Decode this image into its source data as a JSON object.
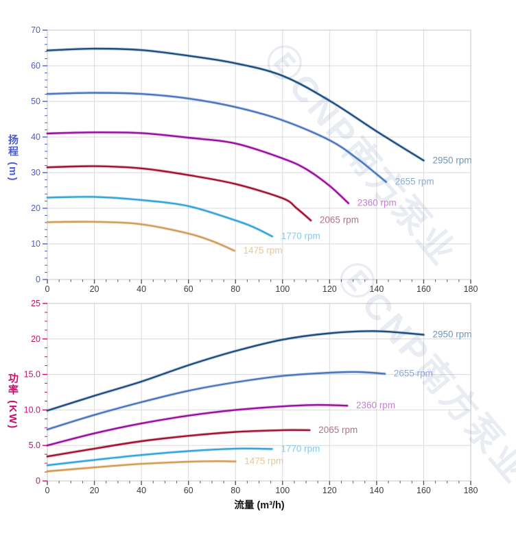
{
  "page": {
    "background": "#ffffff"
  },
  "watermark": {
    "text": "ⒺCNP南方泵业",
    "color": "rgba(92,108,160,0.13)"
  },
  "chart_data": [
    {
      "id": "head-vs-flow",
      "type": "line",
      "title": "",
      "xlabel": "",
      "ylabel": "扬程 (m)",
      "xlim": [
        0,
        180
      ],
      "ylim": [
        0,
        70
      ],
      "grid": true,
      "legend_position": "curve-end-labels",
      "x_ticks": {
        "values": [
          0,
          20,
          40,
          60,
          80,
          100,
          120,
          140,
          160,
          180
        ],
        "labels": [
          "0",
          "20",
          "40",
          "60",
          "80",
          "100",
          "120",
          "140",
          "160",
          "180"
        ],
        "minor_step": 5,
        "label_color": "#3a3a3a"
      },
      "y_ticks": {
        "values": [
          0,
          10,
          20,
          30,
          40,
          50,
          60,
          70
        ],
        "labels": [
          "0",
          "10",
          "20",
          "30",
          "40",
          "50",
          "60",
          "70"
        ],
        "minor_step": 2,
        "color": "#4a5bd6"
      },
      "series": [
        {
          "name": "2950 rpm",
          "color": "#1c4e80",
          "label_color": "#6f94bc",
          "points": [
            [
              0,
              64.3
            ],
            [
              20,
              64.8
            ],
            [
              40,
              64.4
            ],
            [
              60,
              62.8
            ],
            [
              80,
              60.7
            ],
            [
              100,
              57.2
            ],
            [
              120,
              50.2
            ],
            [
              140,
              41.6
            ],
            [
              160,
              33.4
            ]
          ]
        },
        {
          "name": "2655 rpm",
          "color": "#4a76c0",
          "label_color": "#8ea9d8",
          "points": [
            [
              0,
              52.1
            ],
            [
              20,
              52.4
            ],
            [
              40,
              52.1
            ],
            [
              60,
              50.8
            ],
            [
              80,
              48.4
            ],
            [
              100,
              44.7
            ],
            [
              120,
              39.1
            ],
            [
              132,
              33.8
            ],
            [
              144,
              27.4
            ]
          ]
        },
        {
          "name": "2360 rpm",
          "color": "#990f9e",
          "label_color": "#c17fd0",
          "points": [
            [
              0,
              41.0
            ],
            [
              20,
              41.3
            ],
            [
              40,
              41.1
            ],
            [
              60,
              39.8
            ],
            [
              80,
              38.2
            ],
            [
              100,
              34.0
            ],
            [
              110,
              31.0
            ],
            [
              120,
              26.3
            ],
            [
              128,
              21.4
            ]
          ]
        },
        {
          "name": "2065 rpm",
          "color": "#a01331",
          "label_color": "#b3718b",
          "points": [
            [
              0,
              31.5
            ],
            [
              20,
              31.8
            ],
            [
              40,
              31.2
            ],
            [
              60,
              29.3
            ],
            [
              80,
              26.8
            ],
            [
              100,
              22.8
            ],
            [
              106,
              20.0
            ],
            [
              112,
              16.6
            ]
          ]
        },
        {
          "name": "1770 rpm",
          "color": "#35a3dd",
          "label_color": "#85c9ef",
          "points": [
            [
              0,
              23.0
            ],
            [
              20,
              23.2
            ],
            [
              40,
              22.3
            ],
            [
              60,
              20.6
            ],
            [
              80,
              16.6
            ],
            [
              88,
              14.6
            ],
            [
              95.6,
              12.1
            ]
          ]
        },
        {
          "name": "1475 rpm",
          "color": "#d19d58",
          "label_color": "#e5c69c",
          "points": [
            [
              0,
              16.1
            ],
            [
              20,
              16.2
            ],
            [
              40,
              15.5
            ],
            [
              60,
              12.9
            ],
            [
              70,
              10.8
            ],
            [
              79.5,
              8.1
            ]
          ]
        }
      ]
    },
    {
      "id": "power-vs-flow",
      "type": "line",
      "title": "",
      "xlabel": "流量 (m³/h)",
      "ylabel": "功率 (KW)",
      "xlim": [
        0,
        180
      ],
      "ylim": [
        0,
        25
      ],
      "grid": true,
      "legend_position": "curve-end-labels",
      "x_ticks": {
        "values": [
          0,
          20,
          40,
          60,
          80,
          100,
          120,
          140,
          160,
          180
        ],
        "labels": [
          "0",
          "20",
          "40",
          "60",
          "80",
          "100",
          "120",
          "140",
          "160",
          "180"
        ],
        "minor_step": 5,
        "label_color": "#3a3a3a"
      },
      "y_ticks": {
        "values": [
          0,
          5,
          10,
          15,
          20,
          25
        ],
        "labels": [
          "0",
          "5.0",
          "10.0",
          "15.0",
          "20",
          "25"
        ],
        "minor_step": 1.25,
        "color": "#cc0a6e"
      },
      "series": [
        {
          "name": "2950 rpm",
          "color": "#1c4e80",
          "label_color": "#6f94bc",
          "points": [
            [
              0,
              9.9
            ],
            [
              20,
              12.0
            ],
            [
              40,
              14.0
            ],
            [
              60,
              16.3
            ],
            [
              80,
              18.3
            ],
            [
              100,
              19.9
            ],
            [
              120,
              20.8
            ],
            [
              140,
              21.1
            ],
            [
              160,
              20.6
            ]
          ]
        },
        {
          "name": "2655 rpm",
          "color": "#4a76c0",
          "label_color": "#8ea9d8",
          "points": [
            [
              0,
              7.25
            ],
            [
              20,
              9.3
            ],
            [
              40,
              11.1
            ],
            [
              60,
              12.7
            ],
            [
              80,
              13.9
            ],
            [
              100,
              14.8
            ],
            [
              120,
              15.25
            ],
            [
              132,
              15.35
            ],
            [
              143.5,
              15.1
            ]
          ]
        },
        {
          "name": "2360 rpm",
          "color": "#990f9e",
          "label_color": "#c17fd0",
          "points": [
            [
              0,
              5.0
            ],
            [
              20,
              6.7
            ],
            [
              40,
              8.1
            ],
            [
              60,
              9.2
            ],
            [
              80,
              10.0
            ],
            [
              100,
              10.5
            ],
            [
              115,
              10.7
            ],
            [
              127.5,
              10.6
            ]
          ]
        },
        {
          "name": "2065 rpm",
          "color": "#a01331",
          "label_color": "#b3718b",
          "points": [
            [
              0,
              3.45
            ],
            [
              20,
              4.55
            ],
            [
              40,
              5.6
            ],
            [
              60,
              6.35
            ],
            [
              80,
              6.9
            ],
            [
              100,
              7.15
            ],
            [
              111.5,
              7.15
            ]
          ]
        },
        {
          "name": "1770 rpm",
          "color": "#35a3dd",
          "label_color": "#85c9ef",
          "points": [
            [
              0,
              2.2
            ],
            [
              20,
              2.95
            ],
            [
              40,
              3.65
            ],
            [
              60,
              4.2
            ],
            [
              80,
              4.55
            ],
            [
              95.5,
              4.5
            ]
          ]
        },
        {
          "name": "1475 rpm",
          "color": "#d19d58",
          "label_color": "#e5c69c",
          "points": [
            [
              0,
              1.35
            ],
            [
              20,
              1.9
            ],
            [
              40,
              2.4
            ],
            [
              60,
              2.7
            ],
            [
              72,
              2.78
            ],
            [
              80,
              2.74
            ]
          ]
        }
      ]
    }
  ]
}
